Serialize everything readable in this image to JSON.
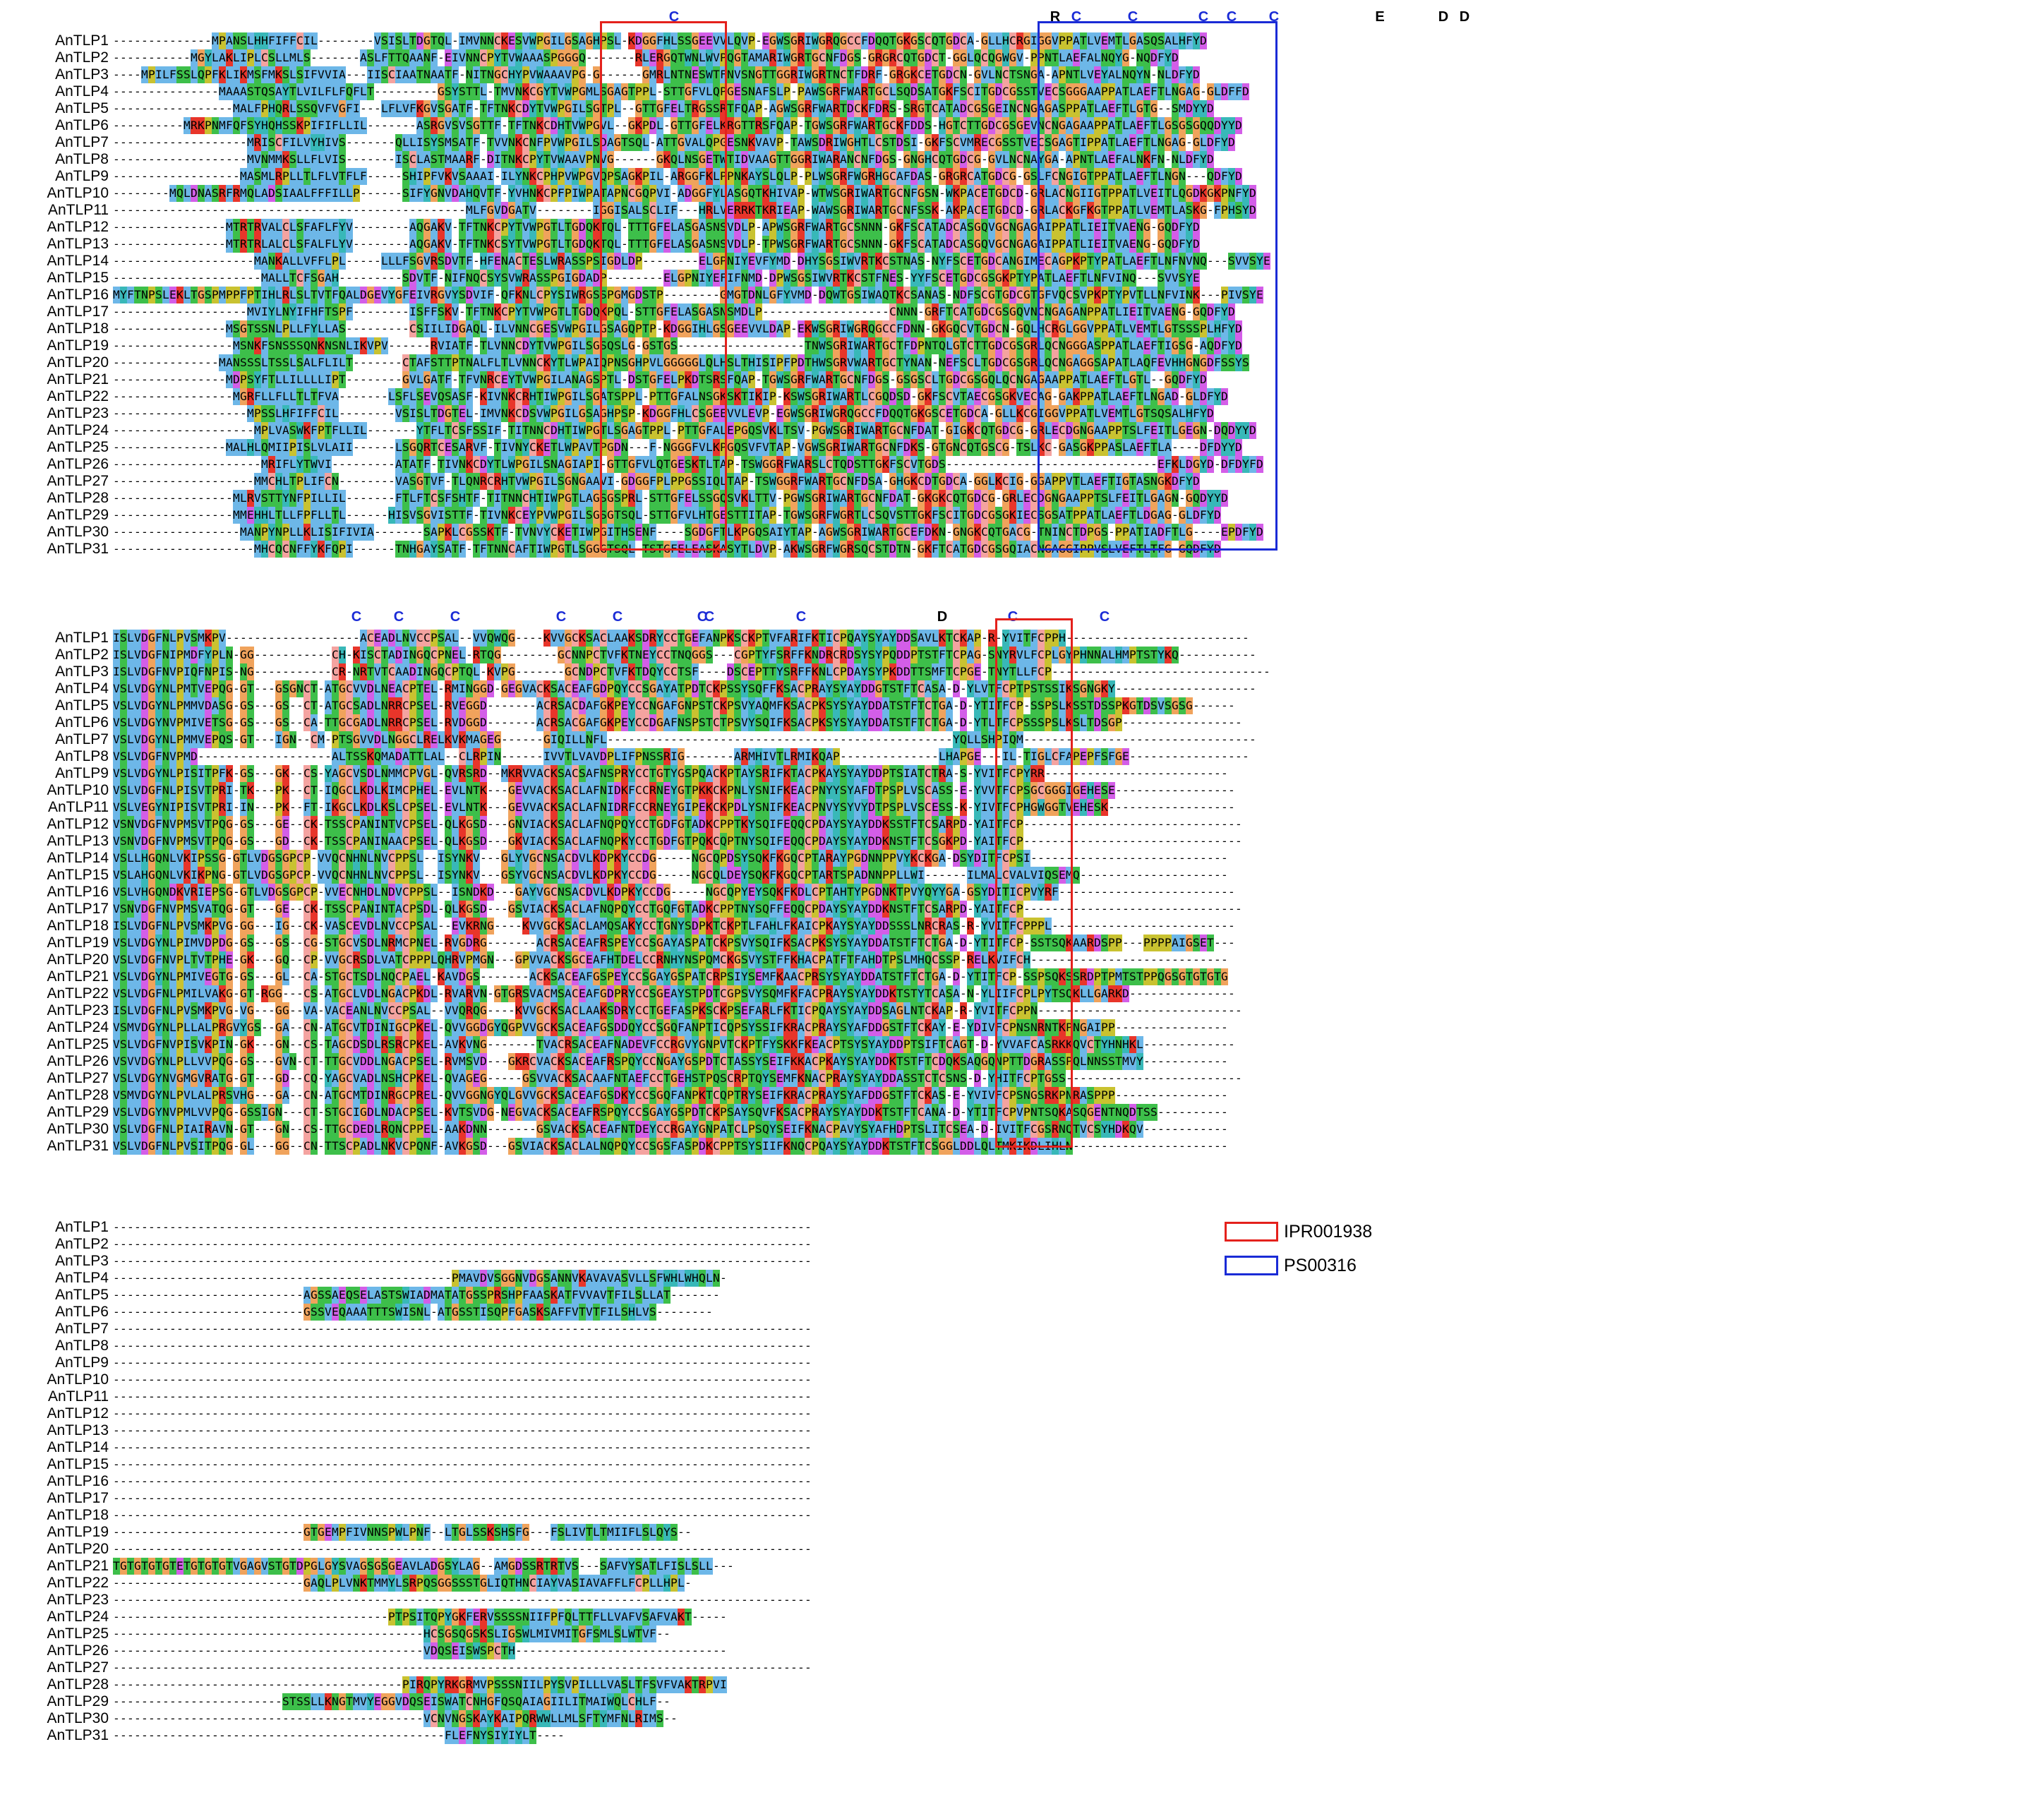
{
  "blocks": [
    {
      "names": [
        "AnTLP1",
        "AnTLP2",
        "AnTLP3",
        "AnTLP4",
        "AnTLP5",
        "AnTLP6",
        "AnTLP7",
        "AnTLP8",
        "AnTLP9",
        "AnTLP10",
        "AnTLP11",
        "AnTLP12",
        "AnTLP13",
        "AnTLP14",
        "AnTLP15",
        "AnTLP16",
        "AnTLP17",
        "AnTLP18",
        "AnTLP19",
        "AnTLP20",
        "AnTLP21",
        "AnTLP22",
        "AnTLP23",
        "AnTLP24",
        "AnTLP25",
        "AnTLP26",
        "AnTLP27",
        "AnTLP28",
        "AnTLP29",
        "AnTLP30",
        "AnTLP31"
      ],
      "seqs": [
        "--------------MPANSLHHFIFFCIL--------VSISLTDGTQL-IMVNNCKESVWPGILGSAGHPSL-KDGGFHLSSGEEVVLQVP-EGWSGRIWGRQGCCFDQQTGKGSCQTGDCA-GLLHCRGIGGVPPATLVEMTLGASQSALHFYD",
        "-----------MGYLAKLIPLCSLLMLS-------ASLFTTQAANF-EIVNNCPYTVWAAASPGGGQ-------RLERGQTWNLWVPQGTAMARIWGRTGCNFDGS-GRGRCQTGDCT-GGLQCQGWGV-PPNTLAEFALNQYG-NQDFYD",
        "----MPILFSSLQPFKLIKMSFMKSLSIFVVIA---IISCIAATNAATF-NITNGCHYPVWAAAVPG-G------GMRLNTNESWTFNVSNGTTGGRIWGRTNCTFDRF-GRGKCETGDCN-GVLNCTSNGA-APNTLVEYALNQYN-NLDFYD",
        "---------------MAAASTQSAYTLVILFLFQFLT---------GSYSTTL-TMVNKCGYTVWPGMLSGAGTPPL-STTGFVLQPGESNAFSLP-PAWSGRFWARTGCLSQDSATGKFSCITGDCGSSTVECSGGGAAPPATLAEFTLNGAG-GLDFFD",
        "-----------------MALFPHQRLSSQVFVGFI---LFLVFKGVSGATF-TFTNKCDYTVWPGILSGTPL--GTTGFELTRGSSRTFQAP-AGWSGRFWARTDCKFDRS-SRGTCATADCGSGEINCNGAGASPPATLAEFTLGTG--SMDYYD",
        "----------MRKPNMFQFSYHQHSSKPIFIFLLIL-------ASRGVSVSGTTF-TFTNKCDHTVWPGVL--GKPDL-GTTGFELKRGTTRSFQAP-TGWSGRFWARTGCKFDDS-HGTCTTGDCGSGEVNCNGAGAAPPATLAEFTLGSGSGQQDYYD",
        "-------------------MRISCFILVYHIVS-------QLLISYSMSATF-TVVNKCNFPVWPGILSDAGTSQL-ATTGVALQPGESNKVAVP-TAWSDRIWGHTLCSTDSI-GKFSCVMRECGSSTVECSGAGTIPPATLAEFTLNGAG-GLDFYD",
        "-------------------MVNMMKSLLFLVIS-------ISCLASTMAARF-DITNKCPYTVWAAVPNVG------GKQLNSGETWTIDVAAGTTGGRIWARANCNFDGS-GNGHCQTGDCG-GVLNCNAYGA-APNTLAEFALNKFN-NLDFYD",
        "------------------MASMLRPLLTLFLVTFLF-----SHIPFVKVSAAAI-ILYNKCPHPVWPGVQPSAGKPIL-ARGGFKLPPNKAYSLQLP-PLWSGRFWGRHGCAFDAS-GRGRCATGDCG-GSLFCNGIGTPPATLAEFTLNGN---QDFYD",
        "--------MQLDNASRFRMQLADSIAALFFFILLP------SIFYGNVDAHQVTF-YVHNKCPFPIWPATAPNCGQPVI-ADGGFYLASGQTKHIVAP-WTWSGRIWARTGCNFGSN-WKPACETGDCD-GRLACNGIIGTPPATLVEITLQGDKGKPNFYD",
        "--------------------------------------------------MLFGVDGATV--------IGGISALSCLIF---HRLVERRKTKRIEAP-WAWSGRIWARTGCNFSSK-AKPACETGDCD-GRLACKGFKGTPPATLVEMTLASKG-FPHSYD",
        "----------------MTRTRVALCLSFAFLFYV--------AQGAKV-TFTNKCPYTVWPGTLTGDQKTQL-TTTGFELASGASNSVDLP-APWSGRFWARTGCSNNN-GKFSCATADCASGQVGCNGAGAIPPATLIEITVAENG-GQDFYD",
        "----------------MTRTRLALCLSFALFLYV--------AQGAKV-TFTNKCSYTVWPGTLTGDQKTQL-TTTGFELASGASNSVDLP-TPWSGRFWARTGCSNNN-GKFSCATADCASGQVGCNGAGAIPPATLIEITVAENG-GQDFYD",
        "--------------------MANKALLVFFLPL-----LLLFSGVRSDVTF-HFENACTESLWRASSPSIGDLDP--------ELGPNIYEVFYMD-DHYSGSIWVRTKCSTNAS-NYFSCETGDCANGIMECAGPKPTYPATLAEFTLNFNVNQ---SVVSYE",
        "---------------------MALLTCFSGAH---------SDVTF-NIFNQCSYSVWRASSPGIGDADP--------ELGPNIYEFIFNMD-DPWSGSIWVRTKCSTFNES-YYFSCETGDCGSGKPTYPATLAEFTLNFVINQ---SVVSYE",
        "MYFTNPSLEKLTGSPMPPFPTIHLRLSLTVTFQALDGEVYGFEIVRGVYSDVIF-QFKNLCPYSIWRGSSPGMGDSTP--------GMGTDNLGFYVMD-DQWTGSIWAQTKCSANAS-NDFSCGTGDCGTGFVQCSVPKPTYPVTLLNFVINK---PIVSYE",
        "-------------------MVIYLNYIFHFTSPF--------ISFFSKV-TFTNKCPYTVWPGTLTGDQKPQL-STTGFELASGASNSMDLP------------------CNNN-GRFTCATGDCGSGQVNCNGAGANPPATLIEITVAENG-GQDFYD",
        "----------------MSGTSSNLPLLFYLLAS---------CSIILIDGAQL-ILVNNCGESVWPGILGSAGQPTP-KDGGIHLGSGEEVVLDAP-EKWSGRIWGRQGCCFDNN-GKGQCVTGDCN-GQLHCRGLGGVPPATLVEMTLGTSSSPLHFYD",
        "-----------------MSNKFSNSSSQNKNSNLIKVPV------RVIATF-TLVNNCDYTVWPGILSGSQSLG-GSTGS------------------TNWSGRIWARTGCTFDPNTQLGTCTTGDCGSGRLQCNGGGASPPATLAEFTIGSG-AQDFYD",
        "---------------MANSSSLTSSLSALFLILT-------CTAFSTTPTNALFLTLVNNCKYTLWPAIQPNSGHPVLGGGGGLQLHSLTHISIPFPDTHWSGRVWARTGCTYNAN-NEFSCLTGDCGSGRLQCNGAGGSAPATLAQFEVHHGNGDFSSYS",
        "----------------MDPSYFTLLILLLLIPT--------GVLGATF-TFVNRCEYTVWPGILANAGSPTL-DSTGFELPKDTSRSFQAP-TGWSGRFWARTGCNFDGS-GSGSCLTGDCGSGQLQCNGAGAAPPATLAEFTLGTL--GQDFYD",
        "-----------------MGRFLLFLLTLTFVA-------LSFLSEVQSASF-KIVNKCRHTIWPGILSGATSPPL-PTTGFALNSGKSKTIKIP-KSWSGRIWARTLCGQDSD-GKFSCVTAECGSGKVECAG-GAKPPATLAEFTLNGAD-GLDFYD",
        "-------------------MPSSLHFIFFCIL--------VSISLTDGTEL-IMVNKCDSVWPGILGSAGHPSP-KDGGFHLCSGEEVVLEVP-EGWSGRIWGRQGCCFDQQTGKGSCETGDCA-GLLKCGIGGVPPATLVEMTLGTSQSALHFYD",
        "--------------------MPLVASWKFPTFLLIL-------YTFLTCSFSSIF-TITNNCDHTIWPGTLSGAGTPPL-PTTGFALEPGQSVKLTSV-PGWSGRIWARTGCNFDAT-GIGKCQTGDCG-GRLECDGNGAAPPTSLFEITLGEGN-DQDYYD",
        "----------------MALHLQMIIPISLVLAII------LSGQRTCESARVF-TIVNYCKETLWPAVTPGDN---F-NGGGFVLKPGQSVFVTAP-VGWSGRIWARTGCNFDKS-GTGNCQTGSCG-TSLKC-GASGKPPASLAEFTLA----DFDYYD",
        "---------------------MRIFLYTWVI---------ATATF-TIVNKCDYTLWPGILSNAGIAPI-GTTGFVLQTGESKTLTAP-TSWGGRFWARSLCTQDSTTGKFSCVTGDS------------------------------EFKLDGYD-DFDYFD",
        "--------------------MMCHLTPLIFCN--------VASGTVF-TLQNRCRHTVWPGILSGNGAAVI-GDGGFPLPPGSSIQLTAP-TSWGGRFWARTGCNFDSA-GHGKCDTGDCA-GGLKCIG-GGAPPVTLAEFTIGTASNGKDFYD",
        "-----------------MLRVSTTYNFPILLIL-------FTLFTCSFSHTF-TITNNCHTIWPGTLAGSGSPRL-STTGFELSSGQSVKLTTV-PGWSGRIWARTGCNFDAT-GKGKCQTGDCG-GRLECDGNGAAPPTSLFEITLGAGN-GQDYYD",
        "-----------------MMEHHLTLLFPFLLTL------HISVSGVISTTF-TIVNKCEYPVWPGILSGSGTSQL-STTGFVLHTGESTTITAP-TGWSGRFWGRTLCSQVSTTGKFSCITGDCGSGKIECSGSATPPATLAEFTLDGAG-GLDFYD",
        "------------------MANPYNPLLKLISIFIVIA-------SAPKLCGSSKTF-TVNVYCKETIWPGITHSENF----SGDGFTLKPGQSAIYTAP-AGWSGRIWARTGCEFDKN-GNGKCQTGACG-TNINCTDPGS-PPATIADFTLG----EPDFYD",
        "--------------------MHCQCNFFYKFQPI------TNHGAYSATF-TFTNNCAFTIWPGTLSGGGTSQL-TSTGFELEASKASYTLDVP-AKWSGRFWGRSQCSTDTN-GKFTCATGDCGSGQIACNGAGGIPPVSLVEFTLTFG-GQDFYD"
      ]
    },
    {
      "names": [
        "AnTLP1",
        "AnTLP2",
        "AnTLP3",
        "AnTLP4",
        "AnTLP5",
        "AnTLP6",
        "AnTLP7",
        "AnTLP8",
        "AnTLP9",
        "AnTLP10",
        "AnTLP11",
        "AnTLP12",
        "AnTLP13",
        "AnTLP14",
        "AnTLP15",
        "AnTLP16",
        "AnTLP17",
        "AnTLP18",
        "AnTLP19",
        "AnTLP20",
        "AnTLP21",
        "AnTLP22",
        "AnTLP23",
        "AnTLP24",
        "AnTLP25",
        "AnTLP26",
        "AnTLP27",
        "AnTLP28",
        "AnTLP29",
        "AnTLP30",
        "AnTLP31"
      ],
      "seqs": [
        "ISLVDGFNLPVSMKPV-------------------ACEADLNVCCPSAL--VVQWQG----KVVGCKSACLAAKSDRYCCTGEFANPKSCKPTVFARIFKTICPQAYSYAYDDSAVLKTCKAP-R-YVITFCPPH--------------------------",
        "ISLVDGFNIPMDFYPLN-GG-----------CH-KISCTADINGQCPNEL-RTQG--------GCNNPCTVFKTNEYCCTNQGGS---CGPTYFSRFFKNDRCRDSYSYPQDDPTSTFTCPAG-SNYRVLFCPLGYPHNNALHMPTSTYKQ-----------",
        "ISLVDGFNVPIQFNPIS-NG-----------CR-NRTVTCAADINGQCPTQL-KVPG-------GCNDPCTVFKTDQYCCTSF----DSCEPTTYSRFFKNLCPDAYSYPKDDTTSMFTCPGE-TNYTLLFCP-------------------------------",
        "VSLVDGYNLPMTVEPQG-GT---GSGNCT-ATGCVVDLNEACPTEL-RMINGGD-GEGVACKSACEAFGDPQYCCSGAYATPDTCKPSSYSQFFKSACPRAYSYAYDDGTSTFTCASA-D-YLVTFCPTPSTSSIKSGNGKY--------------------",
        "VSLVDGYNLPMMVDASG-GS---GS--CT-ATGCSADLNRRCPSEL-RVEGGD-------ACRSACDAFGKPEYCCNGAFGNPSTCKPSVYAQMFKSACPKSYSYAYDDATSTFTCTGA-D-YTITFCP-SSPSLKSSTDSSPKGTDSVSGSG------",
        "VSLVDGYNVPMIVETSG-GS---GS--CA-TTGCGADLNRRCPSEL-RVDGGD-------ACRSACGAFGKPEYCCDGAFNSPSTCTPSVYSQIFKSACPKSYSYAYDDATSTFTCTGA-D-YTLTFCPSSSPSLKSLTDSGP-----------------",
        "VSLVDGYNLPMMVEPQS-GT---IGN--CM-PTSGVVDLNGGCLRELKVKMAGEG------GIQILLNFL-------------------------------------------------YQLLSHPIQM---------------------------------",
        "VSLVDGFNVPMD-------------------ALTSSKQMADATTLAL--CLRPIN------IVVTLVAVDPLIFPNSSRIG-------ARMHIVTLRMIKQAP--------------LHAPGE---IL-TIGLCFAPEPFSFGE-----------------",
        "VSLVDGYNLPISITPFK-GS---GK--CS-YAGCVSDLNMMCPVGL-QVRSRD--MKRVVACKSACSAFNSPRYCCTGTYGSPQACKPTAYSRIFKTACPKAYSYAYDDPTSIATCTRA-S-YVITFCPYRR--------------------------",
        "VSLVDGFNLPISVTPRI-TK---PK--CT-IQGCLKDLKIMCPHEL-EVLNTK---GEVVACKSACLAFNIDKFCCRNEYGTPKKCKPNLYSNIFKEACPNYYSYAFDTPSPLVSCASS-E-YVVTFCPSGCGGGIGEHESE-----------------",
        "VSLVEGYNIPISVTPRI-IN---PK--FT-IKGCLKDLKSLCPSEL-EVLNTK---GEVVACKSACLAFNIDRFCCRNEYGIPEKCKPDLYSNIFKEACPNVYSYVYDTPSPLVSCESS-K-YIVTFCPHGWGGTVEHESK------------------",
        "VSNVDGFNVPMSVTPQG-GS---GE--CK-TSSCPANINTVCPSEL-QLKGSD---GNVIACKSACLAFNQPQYCCTGDFGTADKCPPTKYSQIFEQQCPDAYSYAYDDKSSTFTCSARPD-YAITFCP-------------------------------",
        "VSNVDGFNVPMSVTPQG-GS---GD--CK-TSSCPANINAACPSEL-QLKGSD---GKVIACKSACLAFNQPKYCCTGDFGTPQKCQPTNYSQIFEQQCPDAYSYAYDDKNSTFTCSGKPD-YAITFCP-------------------------------",
        "VSLLHGQNLVKIPSSG-GTLVDGSGPCP-VVQCNHNLNVCPPSL--ISYNKV---GLYVGCNSACDVLKDPKYCCDG-----NGCQPDSYSQKFKGQCPTARAYPGDNNPPVYKCKGA-DSYDITFCPSI----------------------------",
        "VSLAHGQNLVKIKPNG-GTLVDGSGPCP-VVQCNHNLNVCPPSL--ISYNKV---GSYVGCNSACDVLKDPKYCCDG-----NGCQLDEYSQKFKGQCPTARTSPADNNPPLLWI------ILMALCVALVIQSEMQ---------------------",
        "VSLVHGQNDKVRIEPSG-GTLVDGSGPCP-VVECNHDLNDVCPPSL--ISNDKD---GAYVGCNSACDVLKDPKYCCDG-----NGCQPYEYSQKFKDLCPTAHTYPGDNKTPVYQYYGA-GSYDITICPVYRF-------------------------",
        "VSNVDGFNVPMSVATQG-GT---GE--CK-TSSCPANINTACPSDL-QLKGSD---GSVIACKSACLAFNQPQYCCTGQFGTADKCPPTNYSQFFEQQCPDAYSYAYDDKNSTFTCSARPD-YAITFCP-------------------------------",
        "ISLVDGFNLPVSMKPVG-GG---IG--CK-VASCEVDLNVCCPSAL--EVKRNG----KVVGCKSACLAMQSAKYCCTGNYSDPKTCKPTLFAHLFKAICPKAYSYAYDDSSSLNRCRAS-R-YVITFCPPPL--------------------------",
        "VSLVDGYNLPIMVDPDG-GS---GS--CG-STGCVSDLNRMCPNEL-RVGDRG-------ACRSACEAFRSPEYCCSGAYASPATCKPSVYSQIFKSACPKSYSYAYDDATSTFTCTGA-D-YTITFCP-SSTSQKAARDSPP---PPPPAIGSET---",
        "VSLVDGFNVPLTVTPHE-GK---GQ--CP-VVGCRSDLVATCPPPLQHRVPMGN---GPVVACKSGCEAFHTDELCCRNHYNSPQMCKGSVYSTFFKHACPATFTFAHDTPSLMHQCSSP-RELKVIFCH----------------------------",
        "VSLVDGYNLPMIVEGTG-GS---GL--CA-STGCTSDLNQCPAEL-KAVDGS-------ACKSACEAFGSPEYCCSGAYGSPATCRPSIYSEMFKAACPRSYSYAYDDATSTFTCTGA-D-YTITFCP-SSPSQKSSRDPTPMTSTPPQGSGTGTGTG",
        "VSLVDGFNLPMILVAKG-GT-RGG---CS-ATGCLVDLNGACPKDL-RVARVN-GTGRSVACMSACEAFGDPRYCCSGEAYSTPDTCGPSVYSQMFKFACPRAYSYAYDDKTSTYTCASA-N-YLIIFCPLPYTSQKLLGARKD---------------",
        "ISLVDGFNLPVSMKPVG-VG---GG--VA-VACEANLNVCCPSAL--VVQRQG----KVVGCKSACLAAKSDRYCCTGEFASPKSCKPSEFARLFKTICPQAYSYAYDDSAGLNTCKAP-R-YVITFCPPN-----------------------------",
        "VSMVDGYNLPLLALPRGVYGS--GA--CN-ATGCVTDINIGCPKEL-QVVGGDGYQGPVVGCKSACEAFGSDDQYCCSGQFANPTICQPSYSSIFKRACPRAYSYAFDDGSTFTCKAY-E-YDIVFCPNSNRNTKPNGAIPP----------------",
        "VSLVDGFNVPISVKPIN-GK---GN--CS-TAGCDSDLRSRCPKEL-AVKVNG-------TVACRSACEAFNADEVFCCRGVYGNPVTCKPTFYSKKFKEACPTSYSYAYDDPTSIFTCAGT-D-YVVAFCASRKKQVCTYHNHKL-------------",
        "VSVVDGYNLPLLVVPQG-GS---GVN-CT-TTGCVDDLNGACPSEL-RVMSVD---GKRCVACKSACEAFRSPQYCCNGAYGSPDTCTASSYSEIFKKACPKAYSYAYDDKTSTFTCDQKSAQGQNPTTDGRASSPQLNNSSTMVY------------",
        "VSLVDGYNVGMGVRATG-GT---GD--CQ-YAGCVADLNSHCPKEL-QVAGEG-----GSVVACKSACAAFNTAEFCCTGEHSTPQSCRPTQYSEMFKNACPRAYSYAYDDASSTCTCSNS-D-YHITFCPTGSS-------------------------",
        "VSMVDGYNLPVLALPRSVHG---GA--CN-ATGCMTDINRGCPREL-QVVGGNGYQLGVVGCKSACEAFGSDKYCCSGQFANPKTCQPTRYSEIFKRACPRAYSYAFDDGSTFTCKAS-E-YVIVFCPSNGSRKPNRASPPP----------------",
        "VSLVDGYNVPMLVVPQG-GSSIGN---CT-STGCIGDLNDACPSEL-KVTSVDG-NEGVACKSACEAFRSPQYCCSGAYGSPDTCKPSAYSQVFKSACPRAYSYAYDDKTSTFTCANA-D-YTITFCPVPNTSQKASQGENTNQDTSS----------",
        "VSLVDGFNLPIAIRAVN-GT---GN--CS-TTGCDEDLRQNCPPEL-AAKDNN-------GSVACKSACEAFNTDEYCCRGAYGNPATCLPSQYSEIFKNACPAVYSYAFHDPTSLITCSEA-D-IVITFCGSRNQTVCSYHDKQV------------",
        "VSLVDGFNLPVSITPQG-GL---GG--CN-TTSCPADLNKVCPQNF-AVKGSD---GSVIACKSACLALNQPQYCCSGSFASPDKCPPTSYSIIFKNQCPQAYSYAYDDKTSTFTCSGGLDDLQLTMKIKDLIHLN----------------------"
      ]
    },
    {
      "names": [
        "AnTLP1",
        "AnTLP2",
        "AnTLP3",
        "AnTLP4",
        "AnTLP5",
        "AnTLP6",
        "AnTLP7",
        "AnTLP8",
        "AnTLP9",
        "AnTLP10",
        "AnTLP11",
        "AnTLP12",
        "AnTLP13",
        "AnTLP14",
        "AnTLP15",
        "AnTLP16",
        "AnTLP17",
        "AnTLP18",
        "AnTLP19",
        "AnTLP20",
        "AnTLP21",
        "AnTLP22",
        "AnTLP23",
        "AnTLP24",
        "AnTLP25",
        "AnTLP26",
        "AnTLP27",
        "AnTLP28",
        "AnTLP29",
        "AnTLP30",
        "AnTLP31"
      ],
      "seqs": [
        "---------------------------------------------------------------------------------------------------",
        "---------------------------------------------------------------------------------------------------",
        "---------------------------------------------------------------------------------------------------",
        "------------------------------------------------PMAVDVSGGNVDGSANNVKAVAVASVLLSFWHLWHQLN-",
        "---------------------------AGSSAEQSELASTSWIADMATATGSSPRSHPFAASKATFVVAVTFILSLLAT-------",
        "---------------------------GSSVEQAAATTTSWISNL-ATGSSTISQPFGASKSAFFVTVTFILSHLVS--------",
        "---------------------------------------------------------------------------------------------------",
        "---------------------------------------------------------------------------------------------------",
        "---------------------------------------------------------------------------------------------------",
        "---------------------------------------------------------------------------------------------------",
        "---------------------------------------------------------------------------------------------------",
        "---------------------------------------------------------------------------------------------------",
        "---------------------------------------------------------------------------------------------------",
        "---------------------------------------------------------------------------------------------------",
        "---------------------------------------------------------------------------------------------------",
        "---------------------------------------------------------------------------------------------------",
        "---------------------------------------------------------------------------------------------------",
        "---------------------------------------------------------------------------------------------------",
        "---------------------------GTGEMPFIVNNSPWLPNF--LTGLSSKSHSFG---FSLIVTLTMIIFLSLQYS--",
        "---------------------------------------------------------------------------------------------------",
        "TGTGTGTGTETGTGTGTVGAGVSTGTDPGLGYSVAGSGSGEAVLADGSYLAG--AMGDSSRTRTVS---SAFVYSATLFISLSLL---",
        "---------------------------GAQLPLVNKTMMYLSRPQSGGSSSTGLIQTHNCIAYVASIAVAFFLFCPLLHPL-",
        "---------------------------------------------------------------------------------------------------",
        "---------------------------------------PTPSITQPYGKFERVSSSSNIIFPFQLTTFLLVAFVSAFVAKT-----",
        "--------------------------------------------HCSGSQGSKSLIGSWLMIVMITGFSMLSLWTVF--",
        "--------------------------------------------VDQSEISWSPCTH------------------------------",
        "---------------------------------------------------------------------------------------------------",
        "-----------------------------------------PIRQPYRKGRMVPSSSNIILPYSVPILLLVASLTFSVFVAKTRPVI",
        "------------------------STSSLLKNGTMVYEGGVDQSEISWATCNHGFQSQAIAGIILITMAIWQLCHLF--",
        "--------------------------------------------VCNVNGSKAYKAIPQRWWLLMLSFTYMFNLRIMS--",
        "-----------------------------------------------FLEFNYSIYIYLT----"
      ]
    }
  ],
  "block1_markers": [
    {
      "label": "C",
      "col": 79
    },
    {
      "label": "R",
      "col": 133
    },
    {
      "label": "C",
      "col": 136
    },
    {
      "label": "C",
      "col": 144
    },
    {
      "label": "C",
      "col": 154
    },
    {
      "label": "C",
      "col": 158
    },
    {
      "label": "C",
      "col": 164
    },
    {
      "label": "E",
      "col": 179
    },
    {
      "label": "D",
      "col": 188
    },
    {
      "label": "D",
      "col": 191
    }
  ],
  "block2_markers": [
    {
      "label": "C",
      "col": 34
    },
    {
      "label": "C",
      "col": 40
    },
    {
      "label": "C",
      "col": 48
    },
    {
      "label": "C",
      "col": 63
    },
    {
      "label": "C",
      "col": 71
    },
    {
      "label": "C",
      "col": 83
    },
    {
      "label": "C",
      "col": 84
    },
    {
      "label": "C",
      "col": 97
    },
    {
      "label": "D",
      "col": 117
    },
    {
      "label": "C",
      "col": 127
    },
    {
      "label": "C",
      "col": 140
    }
  ],
  "legend": {
    "items": [
      {
        "label": "IPR001938",
        "color": "#e4211c"
      },
      {
        "label": "PS00316",
        "color": "#1a2bd6"
      }
    ]
  },
  "colors": {
    "hydrophobic": "#6db7e8",
    "glycine": "#f0a35c",
    "proline": "#c9c230",
    "polar": "#3dbf4a",
    "cysteine": "#f4a3a0",
    "acidic": "#d35ee8",
    "basic": "#e8352a",
    "aromatic": "#38b8b8",
    "marker_c": "#1a2bd6",
    "marker_other": "#000000"
  }
}
